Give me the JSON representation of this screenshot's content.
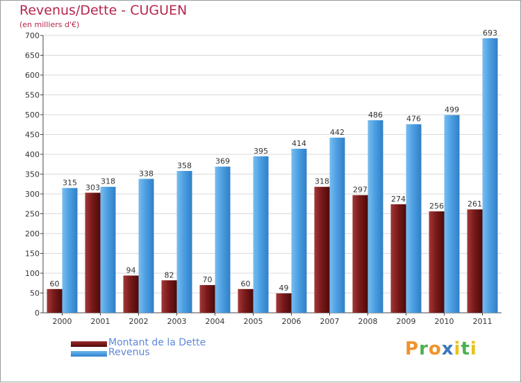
{
  "colors": {
    "dette": "#7a1a1a",
    "revenus": "#4d9fe2",
    "title": "#b5254b",
    "legend_text": "#5f87d8"
  },
  "chart_data": {
    "type": "bar",
    "title": "Revenus/Dette - CUGUEN",
    "subtitle": "(en milliers d'€)",
    "xlabel": "",
    "ylabel": "",
    "ylim": [
      0,
      700
    ],
    "yticks": [
      0,
      50,
      100,
      150,
      200,
      250,
      300,
      350,
      400,
      450,
      500,
      550,
      600,
      650,
      700
    ],
    "grid": true,
    "legend_position": "bottom-left",
    "categories": [
      "2000",
      "2001",
      "2002",
      "2003",
      "2004",
      "2005",
      "2006",
      "2007",
      "2008",
      "2009",
      "2010",
      "2011"
    ],
    "series": [
      {
        "name": "Montant de la Dette",
        "color": "#7a1a1a",
        "values": [
          60,
          303,
          94,
          82,
          70,
          60,
          49,
          318,
          297,
          274,
          256,
          261
        ]
      },
      {
        "name": "Revenus",
        "color": "#4d9fe2",
        "values": [
          315,
          318,
          338,
          358,
          369,
          395,
          414,
          442,
          486,
          476,
          499,
          693
        ]
      }
    ]
  },
  "legend": {
    "dette_label": "Montant de la Dette",
    "revenus_label": "Revenus"
  },
  "logo": {
    "name": "proxiti-logo",
    "letters": [
      "P",
      "r",
      "o",
      "x",
      "i",
      "t",
      "i"
    ],
    "letter_colors": [
      "#f0932b",
      "#4caf50",
      "#f0932b",
      "#3a78c2",
      "#e8c21a",
      "#4caf50",
      "#e8c21a"
    ]
  }
}
